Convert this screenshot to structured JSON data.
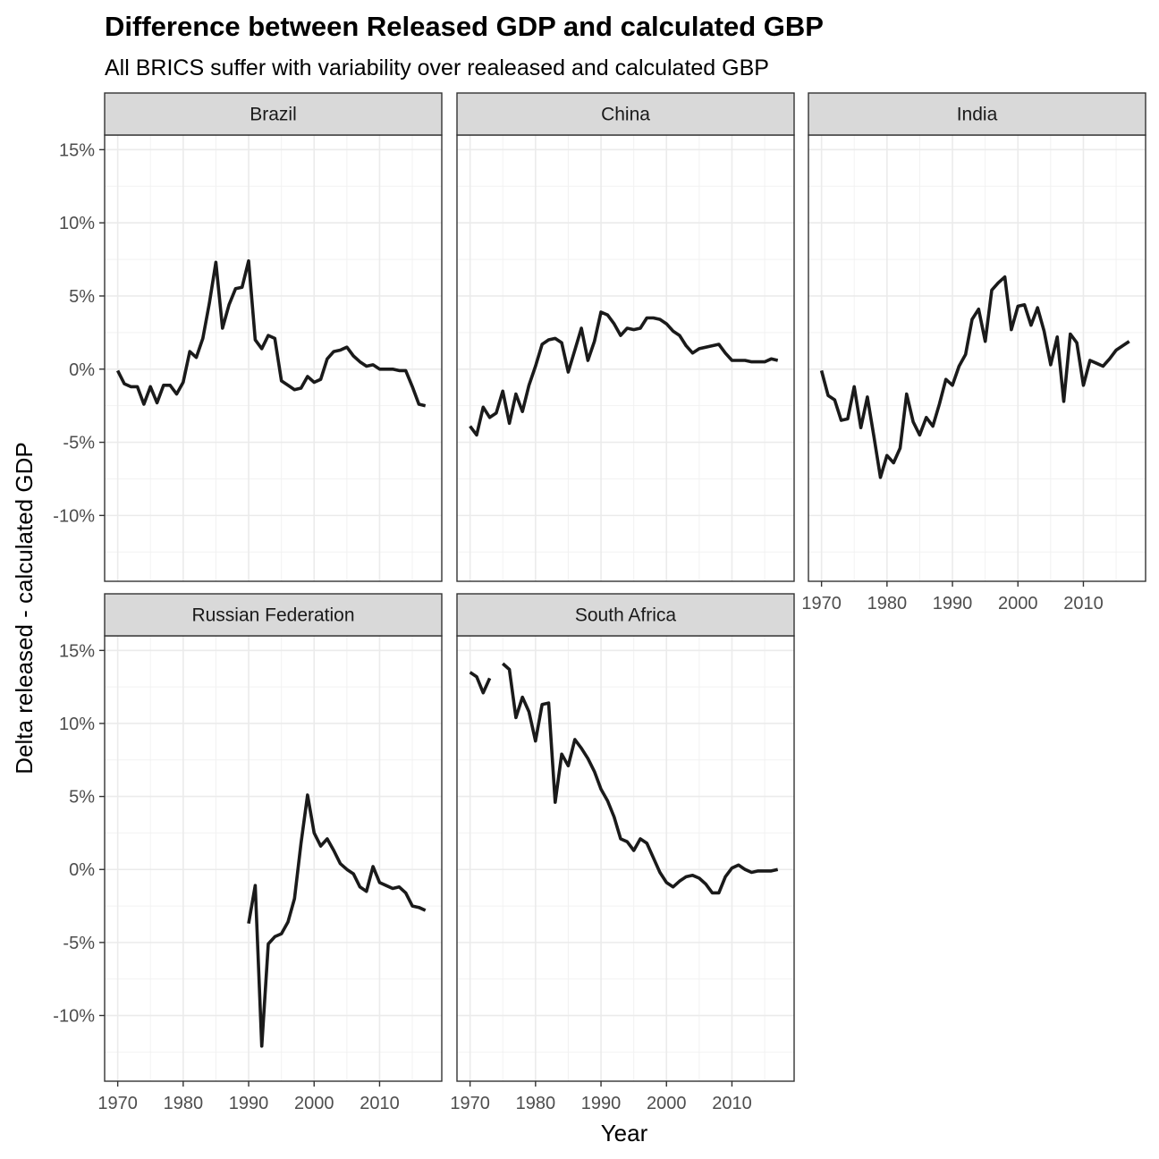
{
  "chart_data": {
    "type": "line",
    "title": "Difference between Released GDP and calculated GBP",
    "subtitle": "All BRICS suffer with variability over realeased and calculated GBP",
    "xlabel": "Year",
    "ylabel": "Delta released - calculated GDP",
    "xlim": [
      1968,
      2019.5
    ],
    "ylim": [
      -14.5,
      16
    ],
    "x_breaks": [
      1970,
      1980,
      1990,
      2000,
      2010
    ],
    "x_tick_labels": [
      "1970",
      "1980",
      "1990",
      "2000",
      "2010"
    ],
    "y_breaks": [
      -10,
      -5,
      0,
      5,
      10,
      15
    ],
    "y_tick_labels": [
      "-10%",
      "-5%",
      "0%",
      "5%",
      "10%",
      "15%"
    ],
    "layout": "facet_wrap 2 rows x 3 cols",
    "line_color": "#1a1a1a",
    "strip_fill": "#d9d9d9",
    "grid": true,
    "panels": [
      {
        "name": "Brazil",
        "segments": [
          [
            [
              1970,
              -0.1
            ],
            [
              1971,
              -1.0
            ],
            [
              1972,
              -1.2
            ],
            [
              1973,
              -1.2
            ],
            [
              1974,
              -2.4
            ],
            [
              1975,
              -1.2
            ],
            [
              1976,
              -2.3
            ],
            [
              1977,
              -1.1
            ],
            [
              1978,
              -1.1
            ],
            [
              1979,
              -1.7
            ],
            [
              1980,
              -0.9
            ],
            [
              1981,
              1.2
            ],
            [
              1982,
              0.8
            ],
            [
              1983,
              2.1
            ],
            [
              1984,
              4.5
            ],
            [
              1985,
              7.3
            ],
            [
              1986,
              2.8
            ],
            [
              1987,
              4.4
            ],
            [
              1988,
              5.5
            ],
            [
              1989,
              5.6
            ],
            [
              1990,
              7.4
            ],
            [
              1991,
              2.0
            ],
            [
              1992,
              1.4
            ],
            [
              1993,
              2.3
            ],
            [
              1994,
              2.1
            ],
            [
              1995,
              -0.8
            ],
            [
              1996,
              -1.1
            ],
            [
              1997,
              -1.4
            ],
            [
              1998,
              -1.3
            ],
            [
              1999,
              -0.5
            ],
            [
              2000,
              -0.9
            ],
            [
              2001,
              -0.7
            ],
            [
              2002,
              0.7
            ],
            [
              2003,
              1.2
            ],
            [
              2004,
              1.3
            ],
            [
              2005,
              1.5
            ],
            [
              2006,
              0.9
            ],
            [
              2007,
              0.5
            ],
            [
              2008,
              0.2
            ],
            [
              2009,
              0.3
            ],
            [
              2010,
              0.0
            ],
            [
              2011,
              0.0
            ],
            [
              2012,
              0.0
            ],
            [
              2013,
              -0.1
            ],
            [
              2014,
              -0.1
            ],
            [
              2015,
              -1.2
            ],
            [
              2016,
              -2.4
            ],
            [
              2017,
              -2.5
            ]
          ]
        ]
      },
      {
        "name": "China",
        "segments": [
          [
            [
              1970,
              -3.9
            ],
            [
              1971,
              -4.5
            ],
            [
              1972,
              -2.6
            ],
            [
              1973,
              -3.3
            ],
            [
              1974,
              -3.0
            ],
            [
              1975,
              -1.5
            ],
            [
              1976,
              -3.7
            ],
            [
              1977,
              -1.7
            ],
            [
              1978,
              -2.9
            ],
            [
              1979,
              -1.1
            ],
            [
              1980,
              0.2
            ],
            [
              1981,
              1.7
            ],
            [
              1982,
              2.0
            ],
            [
              1983,
              2.1
            ],
            [
              1984,
              1.8
            ],
            [
              1985,
              -0.2
            ],
            [
              1986,
              1.3
            ],
            [
              1987,
              2.8
            ],
            [
              1988,
              0.6
            ],
            [
              1989,
              1.9
            ],
            [
              1990,
              3.9
            ],
            [
              1991,
              3.7
            ],
            [
              1992,
              3.1
            ],
            [
              1993,
              2.3
            ],
            [
              1994,
              2.8
            ],
            [
              1995,
              2.7
            ],
            [
              1996,
              2.8
            ],
            [
              1997,
              3.5
            ],
            [
              1998,
              3.5
            ],
            [
              1999,
              3.4
            ],
            [
              2000,
              3.1
            ],
            [
              2001,
              2.6
            ],
            [
              2002,
              2.3
            ],
            [
              2003,
              1.6
            ],
            [
              2004,
              1.1
            ],
            [
              2005,
              1.4
            ],
            [
              2006,
              1.5
            ],
            [
              2007,
              1.6
            ],
            [
              2008,
              1.7
            ],
            [
              2009,
              1.1
            ],
            [
              2010,
              0.6
            ],
            [
              2011,
              0.6
            ],
            [
              2012,
              0.6
            ],
            [
              2013,
              0.5
            ],
            [
              2014,
              0.5
            ],
            [
              2015,
              0.5
            ],
            [
              2016,
              0.7
            ],
            [
              2017,
              0.6
            ]
          ]
        ]
      },
      {
        "name": "India",
        "segments": [
          [
            [
              1970,
              -0.1
            ],
            [
              1971,
              -1.8
            ],
            [
              1972,
              -2.1
            ],
            [
              1973,
              -3.5
            ],
            [
              1974,
              -3.4
            ],
            [
              1975,
              -1.2
            ],
            [
              1976,
              -4.0
            ],
            [
              1977,
              -1.9
            ],
            [
              1978,
              -4.6
            ],
            [
              1979,
              -7.4
            ],
            [
              1980,
              -5.9
            ],
            [
              1981,
              -6.4
            ],
            [
              1982,
              -5.4
            ],
            [
              1983,
              -1.7
            ],
            [
              1984,
              -3.6
            ],
            [
              1985,
              -4.5
            ],
            [
              1986,
              -3.3
            ],
            [
              1987,
              -3.9
            ],
            [
              1988,
              -2.4
            ],
            [
              1989,
              -0.7
            ],
            [
              1990,
              -1.1
            ],
            [
              1991,
              0.2
            ],
            [
              1992,
              1.0
            ],
            [
              1993,
              3.4
            ],
            [
              1994,
              4.1
            ],
            [
              1995,
              1.9
            ],
            [
              1996,
              5.4
            ],
            [
              1997,
              5.9
            ],
            [
              1998,
              6.3
            ],
            [
              1999,
              2.7
            ],
            [
              2000,
              4.3
            ],
            [
              2001,
              4.4
            ],
            [
              2002,
              3.0
            ],
            [
              2003,
              4.2
            ],
            [
              2004,
              2.6
            ],
            [
              2005,
              0.3
            ],
            [
              2006,
              2.2
            ],
            [
              2007,
              -2.2
            ],
            [
              2008,
              2.4
            ],
            [
              2009,
              1.8
            ],
            [
              2010,
              -1.1
            ],
            [
              2011,
              0.6
            ],
            [
              2012,
              0.4
            ],
            [
              2013,
              0.2
            ],
            [
              2014,
              0.7
            ],
            [
              2015,
              1.3
            ],
            [
              2016,
              1.6
            ],
            [
              2017,
              1.9
            ]
          ]
        ]
      },
      {
        "name": "Russian Federation",
        "segments": [
          [
            [
              1990,
              -3.7
            ],
            [
              1991,
              -1.1
            ],
            [
              1992,
              -12.1
            ],
            [
              1993,
              -5.1
            ],
            [
              1994,
              -4.6
            ],
            [
              1995,
              -4.4
            ],
            [
              1996,
              -3.6
            ],
            [
              1997,
              -2.0
            ],
            [
              1998,
              1.8
            ],
            [
              1999,
              5.1
            ],
            [
              2000,
              2.5
            ],
            [
              2001,
              1.6
            ],
            [
              2002,
              2.1
            ],
            [
              2003,
              1.3
            ],
            [
              2004,
              0.4
            ],
            [
              2005,
              0.0
            ],
            [
              2006,
              -0.3
            ],
            [
              2007,
              -1.2
            ],
            [
              2008,
              -1.5
            ],
            [
              2009,
              0.2
            ],
            [
              2010,
              -0.9
            ],
            [
              2011,
              -1.1
            ],
            [
              2012,
              -1.3
            ],
            [
              2013,
              -1.2
            ],
            [
              2014,
              -1.6
            ],
            [
              2015,
              -2.5
            ],
            [
              2016,
              -2.6
            ],
            [
              2017,
              -2.8
            ]
          ]
        ]
      },
      {
        "name": "South Africa",
        "segments": [
          [
            [
              1970,
              13.5
            ],
            [
              1971,
              13.2
            ],
            [
              1972,
              12.1
            ],
            [
              1973,
              13.1
            ]
          ],
          [
            [
              1975,
              14.1
            ],
            [
              1976,
              13.7
            ],
            [
              1977,
              10.4
            ],
            [
              1978,
              11.8
            ],
            [
              1979,
              10.8
            ],
            [
              1980,
              8.8
            ],
            [
              1981,
              11.3
            ],
            [
              1982,
              11.4
            ],
            [
              1983,
              4.6
            ],
            [
              1984,
              7.9
            ],
            [
              1985,
              7.1
            ],
            [
              1986,
              8.9
            ],
            [
              1987,
              8.3
            ],
            [
              1988,
              7.6
            ],
            [
              1989,
              6.7
            ],
            [
              1990,
              5.5
            ],
            [
              1991,
              4.7
            ],
            [
              1992,
              3.6
            ],
            [
              1993,
              2.1
            ],
            [
              1994,
              1.9
            ],
            [
              1995,
              1.3
            ],
            [
              1996,
              2.1
            ],
            [
              1997,
              1.8
            ],
            [
              1998,
              0.8
            ],
            [
              1999,
              -0.2
            ],
            [
              2000,
              -0.9
            ],
            [
              2001,
              -1.2
            ],
            [
              2002,
              -0.8
            ],
            [
              2003,
              -0.5
            ],
            [
              2004,
              -0.4
            ],
            [
              2005,
              -0.6
            ],
            [
              2006,
              -1.0
            ],
            [
              2007,
              -1.6
            ],
            [
              2008,
              -1.6
            ],
            [
              2009,
              -0.5
            ],
            [
              2010,
              0.1
            ],
            [
              2011,
              0.3
            ],
            [
              2012,
              0.0
            ],
            [
              2013,
              -0.2
            ],
            [
              2014,
              -0.1
            ],
            [
              2015,
              -0.1
            ],
            [
              2016,
              -0.1
            ],
            [
              2017,
              0.0
            ]
          ]
        ]
      }
    ]
  }
}
